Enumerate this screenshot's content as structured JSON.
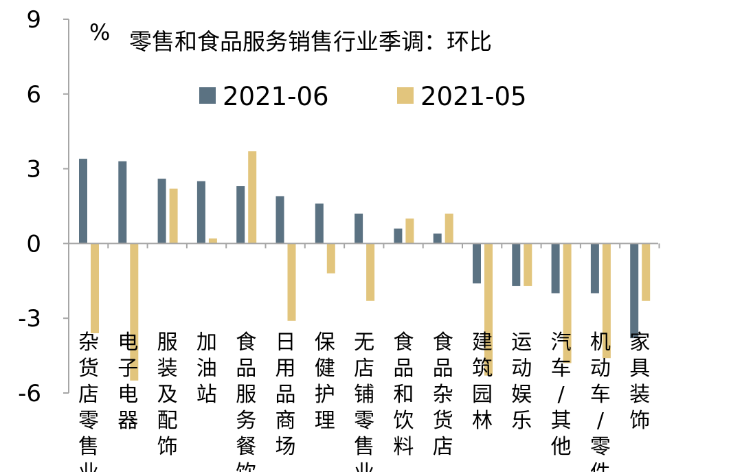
{
  "chart_data": {
    "type": "bar",
    "unit": "%",
    "title": "零售和食品服务销售行业季调：环比",
    "categories": [
      "杂货店零售业",
      "电子电器",
      "服装及配饰",
      "加油站",
      "食品服务餐饮",
      "日用品商场",
      "保健护理",
      "无店铺零售业",
      "食品和饮料",
      "食品杂货店",
      "建筑园林",
      "运动娱乐",
      "汽车/其他",
      "机动车/零件",
      "家具装饰"
    ],
    "series": [
      {
        "name": "2021-06",
        "color": "#5b7282",
        "values": [
          3.4,
          3.3,
          2.6,
          2.5,
          2.3,
          1.9,
          1.6,
          1.2,
          0.6,
          0.4,
          -1.6,
          -1.7,
          -2.0,
          -2.0,
          -3.8
        ]
      },
      {
        "name": "2021-05",
        "color": "#e2c57d",
        "values": [
          -3.6,
          -5.5,
          2.2,
          0.2,
          3.7,
          -3.1,
          -1.2,
          -2.3,
          1.0,
          1.2,
          -5.3,
          -1.7,
          -4.8,
          -4.6,
          -2.3
        ]
      }
    ],
    "ylim": [
      -6,
      9
    ],
    "yticks": [
      "9",
      "6",
      "3",
      "0",
      "-3",
      "-6"
    ],
    "legend_position": "top-center",
    "grid": false
  }
}
